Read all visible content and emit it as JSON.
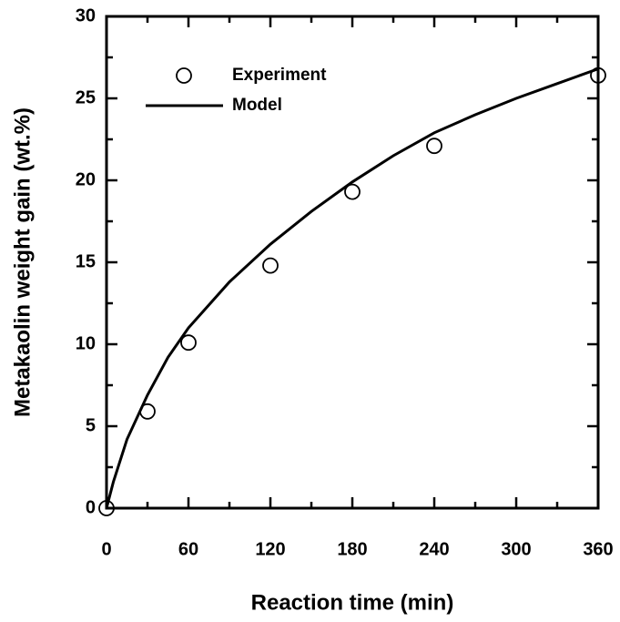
{
  "chart_data": {
    "type": "scatter",
    "xlabel": "Reaction time (min)",
    "ylabel": "Metakaolin weight gain (wt.%)",
    "xlim": [
      0,
      360
    ],
    "ylim": [
      0,
      30
    ],
    "xticks": [
      0,
      60,
      120,
      180,
      240,
      300,
      360
    ],
    "yticks": [
      0,
      5,
      10,
      15,
      20,
      25,
      30
    ],
    "xticks_minor": [
      30,
      90,
      150,
      210,
      270,
      330
    ],
    "yticks_minor": [
      2.5,
      7.5,
      12.5,
      17.5,
      22.5,
      27.5
    ],
    "legend": "upper left",
    "series": [
      {
        "name": "Experiment",
        "color": "#000000",
        "marker": "circle",
        "x": [
          0,
          30,
          60,
          120,
          180,
          240,
          360
        ],
        "values": [
          0,
          5.9,
          10.1,
          14.8,
          19.3,
          22.1,
          26.4
        ]
      },
      {
        "name": "Model",
        "color": "#000000",
        "marker": "line",
        "x": [
          0,
          5,
          15,
          30,
          45,
          60,
          90,
          120,
          150,
          180,
          210,
          240,
          270,
          300,
          330,
          360
        ],
        "values": [
          0,
          1.6,
          4.2,
          6.9,
          9.2,
          11.0,
          13.8,
          16.1,
          18.1,
          19.9,
          21.5,
          22.9,
          24.0,
          25.0,
          25.9,
          26.8
        ]
      }
    ]
  }
}
